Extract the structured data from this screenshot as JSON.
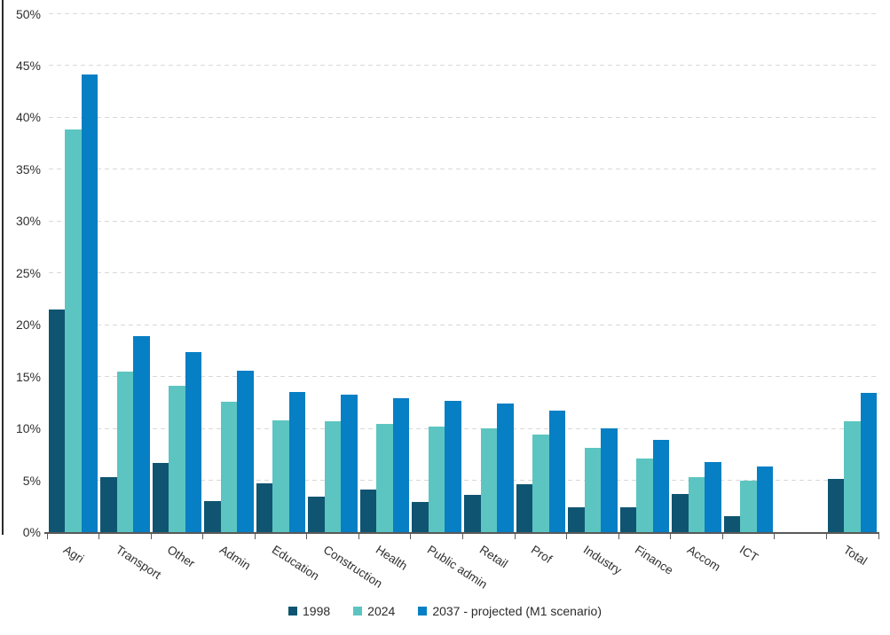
{
  "chart_data": {
    "type": "bar",
    "title": "",
    "xlabel": "",
    "ylabel": "",
    "categories": [
      "Agri",
      "Transport",
      "Other",
      "Admin",
      "Education",
      "Construction",
      "Health",
      "Public admin",
      "Retail",
      "Prof",
      "Industry",
      "Finance",
      "Accom",
      "ICT",
      "",
      "Total"
    ],
    "series": [
      {
        "name": "1998",
        "color": "#0F5571",
        "values": [
          21.5,
          5.3,
          6.7,
          3.0,
          4.7,
          3.4,
          4.1,
          2.9,
          3.6,
          4.6,
          2.4,
          2.4,
          3.7,
          1.5,
          null,
          5.1
        ]
      },
      {
        "name": "2024",
        "color": "#5CC5C1",
        "values": [
          38.8,
          15.5,
          14.1,
          12.6,
          10.8,
          10.7,
          10.4,
          10.2,
          10.0,
          9.4,
          8.1,
          7.1,
          5.3,
          5.0,
          null,
          10.7
        ]
      },
      {
        "name": "2037 - projected (M1 scenario)",
        "color": "#077FC4",
        "values": [
          44.1,
          18.9,
          17.4,
          15.6,
          13.5,
          13.3,
          12.9,
          12.7,
          12.4,
          11.7,
          10.0,
          8.9,
          6.8,
          6.3,
          null,
          13.4
        ]
      }
    ],
    "ylim": [
      0,
      50
    ],
    "ytick_step": 5,
    "ytick_labels": [
      "0%",
      "5%",
      "10%",
      "15%",
      "20%",
      "25%",
      "30%",
      "35%",
      "40%",
      "45%",
      "50%"
    ],
    "grid": "horizontal-dashed",
    "legend_position": "bottom-center",
    "note": "blank category slot between ICT and Total"
  },
  "colors": {
    "background": "#ffffff",
    "gridline": "#d9d9d9",
    "axis_line": "#595959",
    "y_axis_line": "#2b2b2b",
    "axis_text": "#303030",
    "series_1998": "#0F5571",
    "series_2024": "#5CC5C1",
    "series_2037": "#077FC4"
  }
}
